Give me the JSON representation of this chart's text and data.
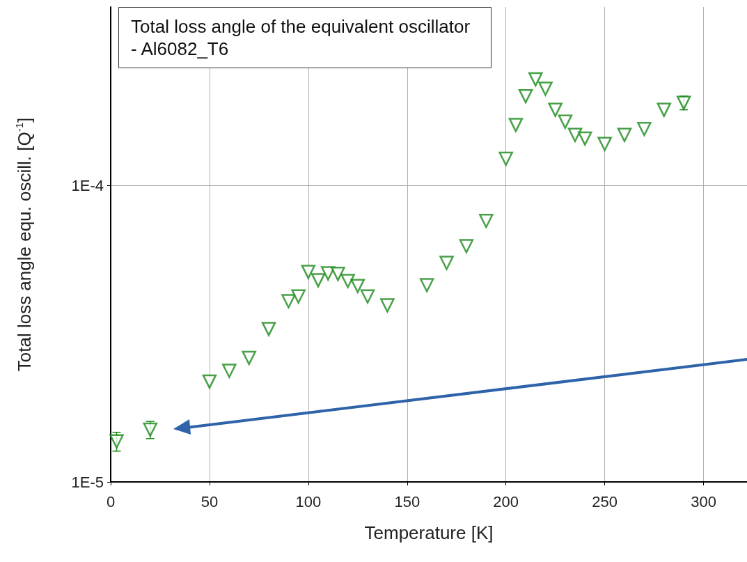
{
  "chart_data": {
    "type": "scatter",
    "title": "Total loss angle of the equivalent oscillator - Al6082_T6",
    "xlabel": "Temperature [K]",
    "ylabel": "Total loss angle equ. oscill. [Q$^{-1}$]",
    "x": [
      3,
      20,
      50,
      60,
      70,
      80,
      90,
      95,
      100,
      105,
      110,
      115,
      120,
      125,
      130,
      140,
      160,
      170,
      180,
      190,
      200,
      205,
      210,
      215,
      220,
      225,
      230,
      235,
      240,
      250,
      260,
      270,
      280,
      290
    ],
    "series": [
      {
        "color": "#1a8a1a",
        "values": [
          1.37e-05,
          1.5e-05,
          2.18e-05,
          2.37e-05,
          2.62e-05,
          3.28e-05,
          4.07e-05,
          4.22e-05,
          5.11e-05,
          4.79e-05,
          5.05e-05,
          5.03e-05,
          4.76e-05,
          4.58e-05,
          4.22e-05,
          3.94e-05,
          4.61e-05,
          5.48e-05,
          6.24e-05,
          7.59e-05,
          0.000123,
          0.00016,
          0.0002,
          0.000228,
          0.000212,
          0.00018,
          0.000164,
          0.000148,
          0.000144,
          0.000138,
          0.000148,
          0.000155,
          0.00018,
          0.00019
        ],
        "errors": [
          1e-06,
          1e-06,
          null,
          null,
          null,
          null,
          null,
          null,
          null,
          null,
          null,
          null,
          null,
          null,
          null,
          null,
          null,
          null,
          null,
          null,
          null,
          null,
          null,
          null,
          null,
          null,
          null,
          null,
          null,
          null,
          null,
          null,
          null,
          1e-05
        ]
      }
    ],
    "xlim": [
      0,
      322
    ],
    "xticks": [
      0,
      50,
      100,
      150,
      200,
      250,
      300
    ],
    "ylim": [
      1e-05,
      0.0004
    ],
    "yticks": [
      {
        "value": 1e-05,
        "label": "1E-5"
      },
      {
        "value": 0.0001,
        "label": "1E-4"
      }
    ],
    "log": "y",
    "grid": true,
    "marker": "triangle"
  }
}
